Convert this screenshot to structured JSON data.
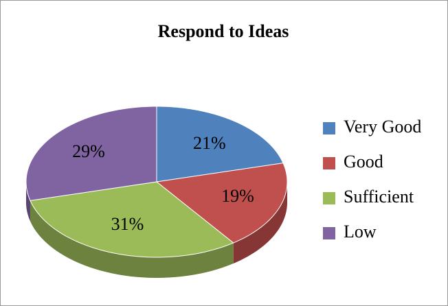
{
  "chart_data": {
    "type": "pie",
    "title": "Respond to Ideas",
    "categories": [
      "Very Good",
      "Good",
      "Sufficient",
      "Low"
    ],
    "values": [
      21,
      19,
      31,
      29
    ],
    "value_labels": [
      "21%",
      "19%",
      "31%",
      "29%"
    ],
    "colors": [
      "#4f81bd",
      "#c0504d",
      "#9bbb59",
      "#8064a2"
    ],
    "legend": "right"
  }
}
